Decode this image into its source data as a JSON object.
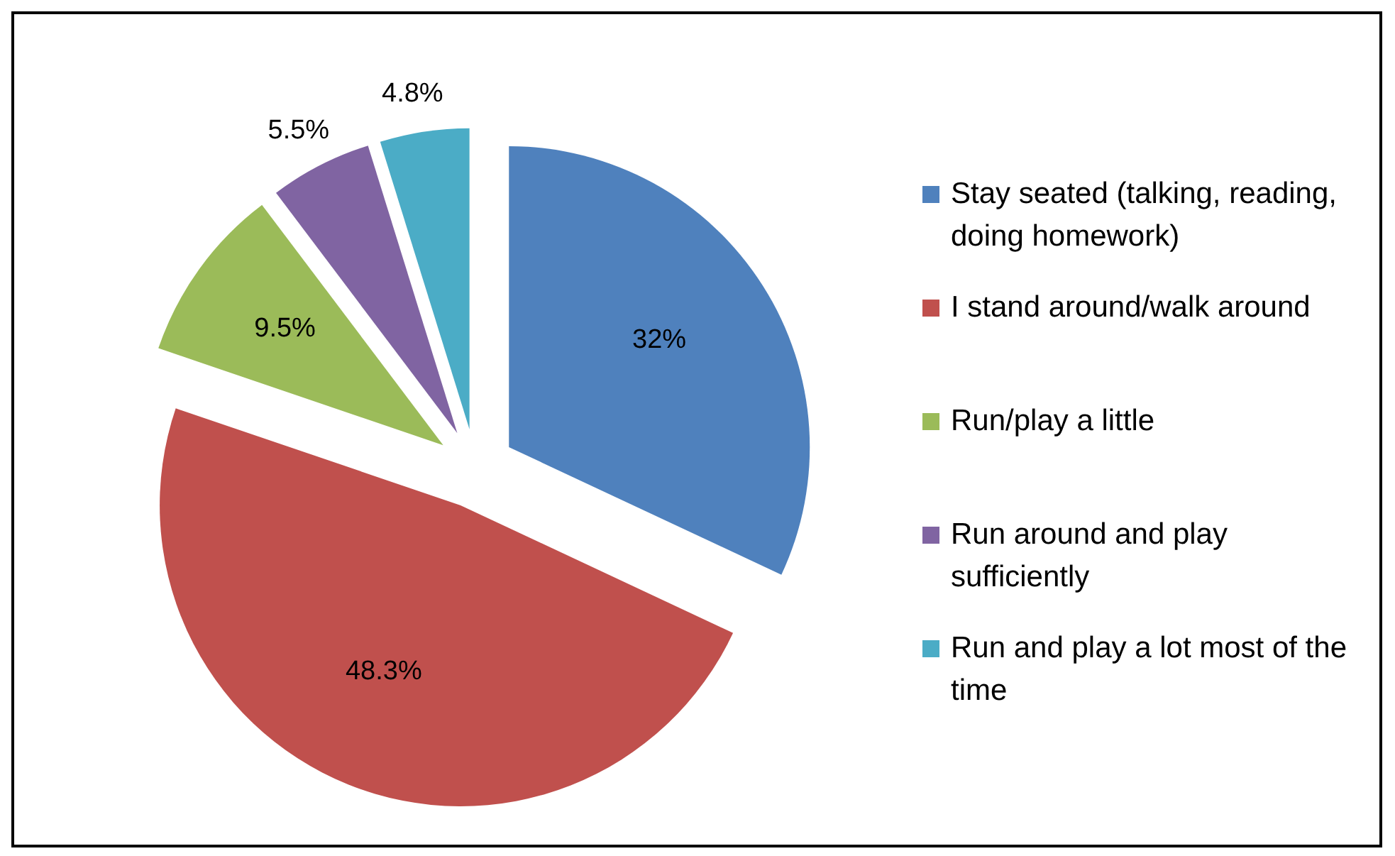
{
  "chart_data": {
    "type": "pie",
    "categories": [
      "Stay seated (talking, reading, doing homework)",
      "I stand around/walk around",
      "Run/play a little",
      "Run around and play sufficiently",
      "Run and play a lot most of the time"
    ],
    "values": [
      32,
      48.3,
      9.5,
      5.5,
      4.8
    ],
    "value_labels": [
      "32%",
      "48.3%",
      "9.5%",
      "5.5%",
      "4.8%"
    ],
    "colors": [
      "#4f81bd",
      "#c0504d",
      "#9bbb59",
      "#8064a2",
      "#4bacc6"
    ],
    "legend": "right"
  }
}
